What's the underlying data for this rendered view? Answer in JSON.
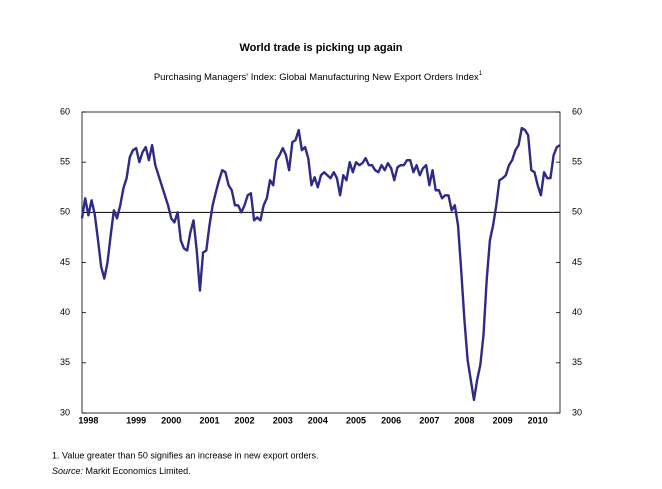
{
  "chart_data": {
    "type": "line",
    "title": "World trade is picking up again",
    "subtitle": "Purchasing Managers' Index:  Global Manufacturing New Export Orders Index",
    "subtitle_note": "1",
    "footnote": "1. Value greater than 50 signifies an increase in new export orders.",
    "source_label": "Source:",
    "source": "Markit Economics Limited.",
    "categories": [
      null,
      null,
      "1998",
      null,
      null,
      null,
      null,
      null,
      null,
      null,
      null,
      null,
      null,
      null,
      null,
      null,
      null,
      "1999",
      null,
      null,
      null,
      null,
      null,
      null,
      null,
      null,
      null,
      null,
      "2000",
      null,
      null,
      null,
      null,
      null,
      null,
      null,
      null,
      null,
      null,
      null,
      "2001",
      null,
      null,
      null,
      null,
      null,
      null,
      null,
      null,
      null,
      null,
      "2002",
      null,
      null,
      null,
      null,
      null,
      null,
      null,
      null,
      null,
      null,
      null,
      "2003",
      null,
      null,
      null,
      null,
      null,
      null,
      null,
      null,
      null,
      null,
      "2004",
      null,
      null,
      null,
      null,
      null,
      null,
      null,
      null,
      null,
      null,
      null,
      "2005",
      null,
      null,
      null,
      null,
      null,
      null,
      null,
      null,
      null,
      null,
      "2006",
      null,
      null,
      null,
      null,
      null,
      null,
      null,
      null,
      null,
      null,
      null,
      "2007",
      null,
      null,
      null,
      null,
      null,
      null,
      null,
      null,
      null,
      null,
      "2008",
      null,
      null,
      null,
      null,
      null,
      null,
      null,
      null,
      null,
      null,
      null,
      "2009",
      null,
      null,
      null,
      null,
      null,
      null,
      null,
      null,
      null,
      null,
      "2010",
      null,
      null,
      null,
      null,
      null,
      null,
      null
    ],
    "series": [
      {
        "color": "#2e2a86",
        "values": [
          49.4,
          51.4,
          49.7,
          51.2,
          49.8,
          47.3,
          44.6,
          43.4,
          45,
          47.7,
          50.2,
          49.4,
          50.7,
          52.4,
          53.4,
          55.5,
          56.2,
          56.4,
          55,
          56,
          56.5,
          55.2,
          56.7,
          54.7,
          53.7,
          52.7,
          51.7,
          50.7,
          49.4,
          49,
          50,
          47.2,
          46.4,
          46.2,
          48,
          49.2,
          46.2,
          42.2,
          46,
          46.2,
          48.7,
          50.7,
          52,
          53.2,
          54.2,
          54,
          52.7,
          52.2,
          50.7,
          50.7,
          50,
          50.7,
          51.7,
          51.9,
          49.2,
          49.5,
          49.2,
          50.7,
          51.4,
          53.2,
          52.7,
          55.2,
          55.7,
          56.4,
          55.7,
          54.2,
          57,
          57.2,
          58.2,
          56.2,
          56.5,
          55.4,
          52.7,
          53.5,
          52.5,
          53.7,
          54,
          53.7,
          53.4,
          54,
          53.4,
          51.7,
          53.7,
          53.2,
          55,
          54,
          55,
          54.7,
          54.9,
          55.4,
          54.7,
          54.7,
          54.2,
          54,
          54.7,
          54.2,
          54.9,
          54.4,
          53.2,
          54.5,
          54.7,
          54.7,
          55.2,
          55.2,
          54,
          54.7,
          53.7,
          54.4,
          54.7,
          52.7,
          54.2,
          52.2,
          52.2,
          51.4,
          51.7,
          51.7,
          50.2,
          50.7,
          48.7,
          44.2,
          39.3,
          35.3,
          33.3,
          31.3,
          33.3,
          34.8,
          37.8,
          43.3,
          47.2,
          48.7,
          50.7,
          53.2,
          53.4,
          53.7,
          54.7,
          55.2,
          56.2,
          56.7,
          58.4,
          58.2,
          57.7,
          54.2,
          54,
          52.7,
          51.7,
          54,
          53.4,
          53.4,
          55.7,
          56.5,
          56.7
        ]
      }
    ],
    "ylim": [
      30,
      60
    ],
    "yticks": [
      30,
      35,
      40,
      45,
      50,
      55,
      60
    ],
    "hline": 50
  }
}
